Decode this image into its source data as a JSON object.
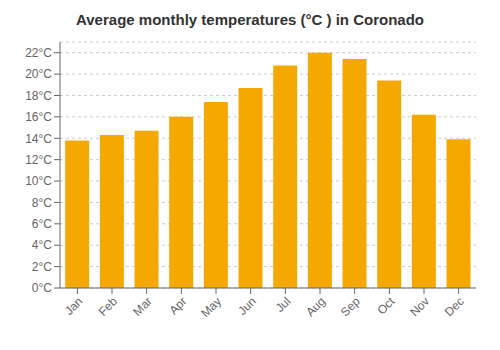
{
  "chart_data": {
    "type": "bar",
    "title": "Average monthly temperatures (°C ) in Coronado",
    "categories": [
      "Jan",
      "Feb",
      "Mar",
      "Apr",
      "May",
      "Jun",
      "Jul",
      "Aug",
      "Sep",
      "Oct",
      "Nov",
      "Dec"
    ],
    "values": [
      13.8,
      14.3,
      14.7,
      16.0,
      17.4,
      18.7,
      20.8,
      22.0,
      21.4,
      19.4,
      16.2,
      13.9
    ],
    "color": "#F5A800",
    "ylim": [
      0,
      23
    ],
    "yticks": [
      {
        "value": 0,
        "label": "0°C"
      },
      {
        "value": 2,
        "label": "2°C"
      },
      {
        "value": 4,
        "label": "4°C"
      },
      {
        "value": 6,
        "label": "6°C"
      },
      {
        "value": 8,
        "label": "8°C"
      },
      {
        "value": 10,
        "label": "10°C"
      },
      {
        "value": 12,
        "label": "12°C"
      },
      {
        "value": 14,
        "label": "14°C"
      },
      {
        "value": 16,
        "label": "16°C"
      },
      {
        "value": 18,
        "label": "18°C"
      },
      {
        "value": 20,
        "label": "20°C"
      },
      {
        "value": 22,
        "label": "22°C"
      }
    ],
    "grid": true
  }
}
